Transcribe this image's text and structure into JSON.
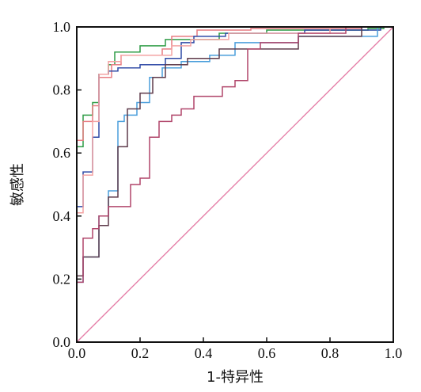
{
  "chart_data": {
    "type": "line",
    "title": "",
    "xlabel": "1-特异性",
    "ylabel": "敏感性",
    "xlim": [
      0,
      1
    ],
    "ylim": [
      0,
      1
    ],
    "xticks": [
      "0.0",
      "0.2",
      "0.4",
      "0.6",
      "0.8",
      "1.0"
    ],
    "yticks": [
      "0.0",
      "0.2",
      "0.4",
      "0.6",
      "0.8",
      "1.0"
    ],
    "grid": false,
    "reference_line": {
      "x": [
        0,
        1
      ],
      "y": [
        0,
        1
      ],
      "color": "#e57fa8"
    },
    "series": [
      {
        "color": "#2e9c46",
        "x": [
          0,
          0,
          0.02,
          0.02,
          0.05,
          0.05,
          0.07,
          0.07,
          0.1,
          0.1,
          0.12,
          0.12,
          0.2,
          0.2,
          0.28,
          0.28,
          0.45,
          0.45,
          0.6,
          0.6,
          0.92,
          0.92,
          0.97,
          0.97,
          1.0
        ],
        "y": [
          0,
          0.62,
          0.62,
          0.72,
          0.72,
          0.76,
          0.76,
          0.85,
          0.85,
          0.88,
          0.88,
          0.92,
          0.92,
          0.94,
          0.94,
          0.96,
          0.96,
          0.98,
          0.98,
          0.99,
          0.99,
          0.995,
          0.995,
          1.0,
          1.0
        ]
      },
      {
        "color": "#e87c82",
        "x": [
          0,
          0,
          0.02,
          0.02,
          0.05,
          0.05,
          0.07,
          0.07,
          0.11,
          0.11,
          0.14,
          0.14,
          0.27,
          0.27,
          0.3,
          0.3,
          0.38,
          0.38,
          0.55,
          0.55,
          0.9,
          0.9,
          1.0
        ],
        "y": [
          0,
          0.64,
          0.64,
          0.7,
          0.7,
          0.75,
          0.75,
          0.84,
          0.84,
          0.88,
          0.88,
          0.91,
          0.91,
          0.93,
          0.93,
          0.97,
          0.97,
          0.99,
          0.99,
          0.995,
          0.995,
          1.0,
          1.0
        ]
      },
      {
        "color": "#2f4aa6",
        "x": [
          0,
          0,
          0.02,
          0.02,
          0.05,
          0.05,
          0.07,
          0.07,
          0.1,
          0.1,
          0.13,
          0.13,
          0.2,
          0.2,
          0.28,
          0.28,
          0.33,
          0.33,
          0.37,
          0.37,
          0.47,
          0.47,
          0.72,
          0.72,
          0.96,
          0.96,
          1.0
        ],
        "y": [
          0,
          0.43,
          0.43,
          0.54,
          0.54,
          0.65,
          0.65,
          0.85,
          0.85,
          0.86,
          0.86,
          0.87,
          0.87,
          0.88,
          0.88,
          0.9,
          0.9,
          0.95,
          0.95,
          0.97,
          0.97,
          0.98,
          0.98,
          0.99,
          0.99,
          1.0,
          1.0
        ]
      },
      {
        "color": "#f4a3a3",
        "x": [
          0,
          0,
          0.02,
          0.02,
          0.05,
          0.05,
          0.07,
          0.07,
          0.1,
          0.1,
          0.14,
          0.14,
          0.3,
          0.3,
          0.36,
          0.36,
          0.48,
          0.48,
          0.8,
          0.8,
          1.0
        ],
        "y": [
          0,
          0.41,
          0.41,
          0.53,
          0.53,
          0.7,
          0.7,
          0.85,
          0.85,
          0.89,
          0.89,
          0.91,
          0.91,
          0.94,
          0.94,
          0.96,
          0.96,
          0.98,
          0.98,
          1.0,
          1.0
        ]
      },
      {
        "color": "#4a9edb",
        "x": [
          0,
          0,
          0.02,
          0.02,
          0.07,
          0.07,
          0.1,
          0.1,
          0.13,
          0.13,
          0.15,
          0.15,
          0.19,
          0.19,
          0.23,
          0.23,
          0.27,
          0.27,
          0.33,
          0.33,
          0.42,
          0.42,
          0.5,
          0.5,
          0.7,
          0.7,
          0.95,
          0.95,
          1.0
        ],
        "y": [
          0,
          0.19,
          0.19,
          0.27,
          0.27,
          0.4,
          0.4,
          0.48,
          0.48,
          0.7,
          0.7,
          0.72,
          0.72,
          0.76,
          0.76,
          0.84,
          0.84,
          0.87,
          0.87,
          0.89,
          0.89,
          0.91,
          0.91,
          0.95,
          0.95,
          0.97,
          0.97,
          1.0,
          1.0
        ]
      },
      {
        "color": "#5e3a4a",
        "x": [
          0,
          0,
          0.02,
          0.02,
          0.07,
          0.07,
          0.1,
          0.1,
          0.13,
          0.13,
          0.16,
          0.16,
          0.2,
          0.2,
          0.24,
          0.24,
          0.28,
          0.28,
          0.35,
          0.35,
          0.45,
          0.45,
          0.7,
          0.7,
          0.9,
          0.9,
          1.0
        ],
        "y": [
          0,
          0.21,
          0.21,
          0.27,
          0.27,
          0.37,
          0.37,
          0.46,
          0.46,
          0.62,
          0.62,
          0.74,
          0.74,
          0.79,
          0.79,
          0.84,
          0.84,
          0.88,
          0.88,
          0.9,
          0.9,
          0.93,
          0.93,
          0.97,
          0.97,
          1.0,
          1.0
        ]
      },
      {
        "color": "#b0456a",
        "x": [
          0,
          0,
          0.02,
          0.02,
          0.05,
          0.05,
          0.07,
          0.07,
          0.1,
          0.1,
          0.14,
          0.14,
          0.17,
          0.17,
          0.2,
          0.2,
          0.23,
          0.23,
          0.26,
          0.26,
          0.3,
          0.3,
          0.33,
          0.33,
          0.37,
          0.37,
          0.46,
          0.46,
          0.5,
          0.5,
          0.54,
          0.54,
          0.58,
          0.58,
          0.7,
          0.7,
          0.85,
          0.85,
          1.0
        ],
        "y": [
          0,
          0.19,
          0.19,
          0.33,
          0.33,
          0.36,
          0.36,
          0.4,
          0.4,
          0.43,
          0.43,
          0.43,
          0.43,
          0.5,
          0.5,
          0.52,
          0.52,
          0.65,
          0.65,
          0.7,
          0.7,
          0.72,
          0.72,
          0.74,
          0.74,
          0.78,
          0.78,
          0.81,
          0.81,
          0.83,
          0.83,
          0.93,
          0.93,
          0.95,
          0.95,
          0.98,
          0.98,
          1.0,
          1.0
        ]
      }
    ]
  }
}
